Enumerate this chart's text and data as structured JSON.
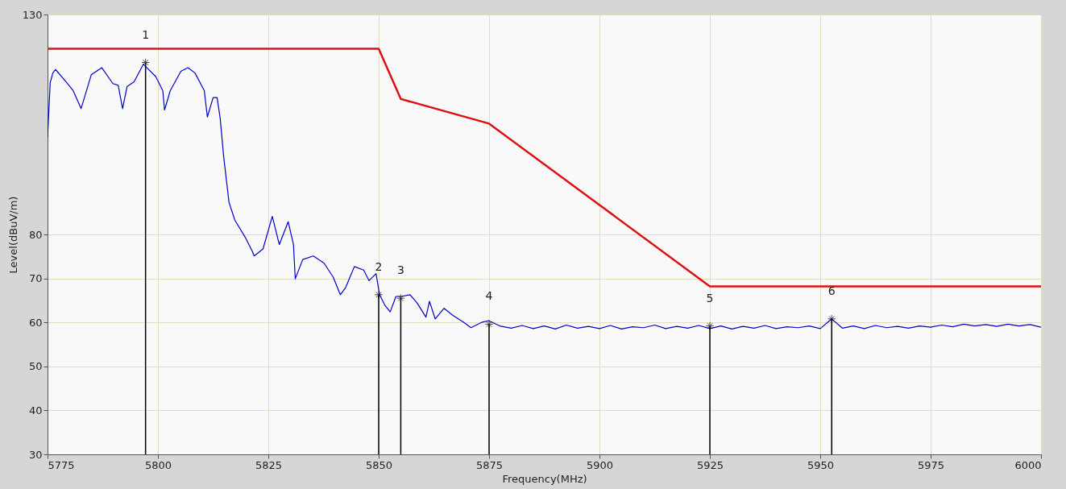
{
  "chart_data": {
    "type": "line",
    "xlabel": "Frequency(MHz)",
    "ylabel": "Level(dBuV/m)",
    "xlim": [
      5775,
      6000
    ],
    "xticks": [
      {
        "value": 5775,
        "label": "5775"
      },
      {
        "value": 5800,
        "label": "5800"
      },
      {
        "value": 5825,
        "label": "5825"
      },
      {
        "value": 5850,
        "label": "5850"
      },
      {
        "value": 5875,
        "label": "5875"
      },
      {
        "value": 5900,
        "label": "5900"
      },
      {
        "value": 5925,
        "label": "5925"
      },
      {
        "value": 5950,
        "label": "5950"
      },
      {
        "value": 5975,
        "label": "5975"
      },
      {
        "value": 6000,
        "label": "6000"
      }
    ],
    "ylim": [
      30,
      130
    ],
    "yticks": [
      30,
      40,
      50,
      60,
      70,
      80,
      130
    ],
    "grid": true,
    "legend": false,
    "series": [
      {
        "color": "#0000cc",
        "x": [
          5775,
          5775.6,
          5776.2,
          5776.8,
          5779.2,
          5780.8,
          5782.6,
          5784.9,
          5787.3,
          5789.8,
          5791.0,
          5792.0,
          5793.0,
          5794.6,
          5796.7,
          5797.5,
          5799.5,
          5801.1,
          5801.5,
          5802.8,
          5805.2,
          5806.8,
          5808.4,
          5810.5,
          5811.2,
          5812.5,
          5813.4,
          5814.1,
          5814.9,
          5816.1,
          5817.4,
          5819.8,
          5821.4,
          5821.8,
          5823.8,
          5825.9,
          5827.5,
          5829.5,
          5830.7,
          5831.1,
          5832.8,
          5835.2,
          5837.6,
          5839.7,
          5841.3,
          5842.5,
          5844.5,
          5846.6,
          5847.8,
          5849.4,
          5850.2,
          5851.4,
          5852.6,
          5853.9,
          5855.1,
          5857.1,
          5858.7,
          5860.7,
          5861.5,
          5862.8,
          5864.8,
          5866.8,
          5869.3,
          5870.9,
          5873.3,
          5874.9,
          5877.4,
          5880,
          5882.5,
          5885,
          5887.5,
          5890,
          5892.5,
          5895,
          5897.5,
          5900,
          5902.5,
          5905,
          5907.5,
          5910,
          5912.5,
          5915,
          5917.5,
          5920,
          5922.5,
          5925,
          5927.5,
          5930,
          5932.5,
          5935,
          5937.5,
          5940,
          5942.5,
          5945,
          5947.5,
          5950,
          5952.6,
          5955,
          5957.5,
          5960,
          5962.5,
          5965,
          5967.5,
          5970,
          5972.5,
          5975,
          5977.5,
          5980,
          5982.5,
          5985,
          5987.5,
          5990,
          5992.5,
          5995,
          5997.5,
          6000
        ],
        "values": [
          102.0,
          114.5,
          116.7,
          117.5,
          114.7,
          112.7,
          108.6,
          116.3,
          117.9,
          114.3,
          113.9,
          108.6,
          113.6,
          114.7,
          118.7,
          117.9,
          115.9,
          112.7,
          108.3,
          112.7,
          117.1,
          117.9,
          116.7,
          112.7,
          106.7,
          111.1,
          111.1,
          106.4,
          97.6,
          87.3,
          83.3,
          79.3,
          76.1,
          75.1,
          76.7,
          84.1,
          77.7,
          82.9,
          77.7,
          69.9,
          74.3,
          75.1,
          73.5,
          70.3,
          66.3,
          67.9,
          72.7,
          71.9,
          69.5,
          71.1,
          66.3,
          63.9,
          62.4,
          65.9,
          65.9,
          66.3,
          64.4,
          61.2,
          64.8,
          60.8,
          63.2,
          61.6,
          60.0,
          58.8,
          60.0,
          60.4,
          59.2,
          58.7,
          59.3,
          58.6,
          59.2,
          58.5,
          59.4,
          58.7,
          59.1,
          58.6,
          59.3,
          58.5,
          59.0,
          58.8,
          59.4,
          58.6,
          59.1,
          58.7,
          59.3,
          58.6,
          59.2,
          58.5,
          59.1,
          58.7,
          59.3,
          58.6,
          59.0,
          58.8,
          59.2,
          58.6,
          60.8,
          58.7,
          59.2,
          58.6,
          59.3,
          58.8,
          59.1,
          58.7,
          59.2,
          58.9,
          59.4,
          59.0,
          59.6,
          59.2,
          59.5,
          59.1,
          59.6,
          59.2,
          59.5,
          58.9
        ]
      },
      {
        "color": "#dd1111",
        "x": [
          5775,
          5850,
          5855,
          5875,
          5925,
          6000
        ],
        "values": [
          122.2,
          122.2,
          110.8,
          105.2,
          68.2,
          68.2
        ]
      },
      {
        "type": "lollipop",
        "color": "#000000",
        "marker": "cross",
        "x": [
          5797.2,
          5850,
          5855,
          5875,
          5925,
          5952.6
        ],
        "values": [
          119.1,
          66.3,
          65.5,
          59.6,
          59.2,
          60.8
        ]
      }
    ],
    "annotations": [
      {
        "text": "1",
        "x": 5797.2,
        "y": 119.1
      },
      {
        "text": "2",
        "x": 5850,
        "y": 66.3
      },
      {
        "text": "3",
        "x": 5855,
        "y": 65.5
      },
      {
        "text": "4",
        "x": 5875,
        "y": 59.6
      },
      {
        "text": "5",
        "x": 5925,
        "y": 59.2
      },
      {
        "text": "6",
        "x": 5952.6,
        "y": 60.8
      }
    ]
  }
}
